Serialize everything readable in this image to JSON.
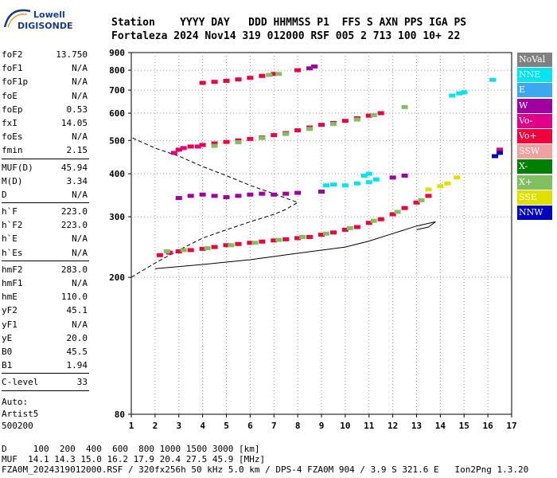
{
  "logo": {
    "line1": "Lowell",
    "line2": "DIGISONDE"
  },
  "header": {
    "line1": "Station    YYYY DAY   DDD HHMMSS P1  FFS S AXN PPS IGA PS",
    "line2": "Fortaleza 2024 Nov14 319 012000 RSF 005 2 713 100 10+ 22"
  },
  "params": [
    {
      "k": "foF2",
      "v": "13.750"
    },
    {
      "k": "foF1",
      "v": "N/A"
    },
    {
      "k": "foF1p",
      "v": "N/A"
    },
    {
      "k": "foE",
      "v": "N/A"
    },
    {
      "k": "foEp",
      "v": "0.53"
    },
    {
      "k": "fxI",
      "v": "14.05"
    },
    {
      "k": "foEs",
      "v": "N/A"
    },
    {
      "k": "fmin",
      "v": "2.15"
    },
    {
      "sep": true
    },
    {
      "k": "MUF(D)",
      "v": "45.94"
    },
    {
      "k": "M(D)",
      "v": "3.34"
    },
    {
      "k": "D",
      "v": "N/A"
    },
    {
      "sep": true
    },
    {
      "k": "h`F",
      "v": "223.0"
    },
    {
      "k": "h`F2",
      "v": "223.0"
    },
    {
      "k": "h`E",
      "v": "N/A"
    },
    {
      "k": "h`Es",
      "v": "N/A"
    },
    {
      "sep": true
    },
    {
      "k": "hmF2",
      "v": "283.0"
    },
    {
      "k": "hmF1",
      "v": "N/A"
    },
    {
      "k": "hmE",
      "v": "110.0"
    },
    {
      "k": "yF2",
      "v": "45.1"
    },
    {
      "k": "yF1",
      "v": "N/A"
    },
    {
      "k": "yE",
      "v": "20.0"
    },
    {
      "k": "B0",
      "v": "45.5"
    },
    {
      "k": "B1",
      "v": "1.94"
    },
    {
      "sep": true
    },
    {
      "k": "C-level",
      "v": "33"
    },
    {
      "sep": true
    }
  ],
  "auto": [
    "Auto:",
    "Artist5",
    "500200"
  ],
  "legend": [
    {
      "label": "NoVal",
      "color": "#808080"
    },
    {
      "label": "NNE",
      "color": "#00e5f0"
    },
    {
      "label": "E",
      "color": "#3ba8f0"
    },
    {
      "label": "W",
      "color": "#a000a0"
    },
    {
      "label": "Vo-",
      "color": "#e0008a"
    },
    {
      "label": "Vo+",
      "color": "#f0003c"
    },
    {
      "label": "SSW",
      "color": "#f0a0a0"
    },
    {
      "label": "X-",
      "color": "#008000"
    },
    {
      "label": "X+",
      "color": "#80c060"
    },
    {
      "label": "SSE",
      "color": "#e0e000"
    },
    {
      "label": "NNW",
      "color": "#0000c0"
    }
  ],
  "footer": {
    "line1": "D     100  200  400  600  800 1000 1500 3000 [km]",
    "line2": "MUF  14.1 14.3 15.0 16.2 17.9 20.4 27.5 45.9 [MHz]",
    "line3": "FZA0M_2024319012000.RSF / 320fx256h 50 kHz 5.0 km / DPS-4 FZA0M 904 / 3.9 S 321.6 E   Ion2Png 1.3.20"
  },
  "chart_data": {
    "type": "scatter",
    "xlim": [
      1,
      17
    ],
    "ylim": [
      80,
      900
    ],
    "y_scale": "log",
    "xticks": [
      1,
      2,
      3,
      4,
      5,
      6,
      7,
      8,
      9,
      10,
      11,
      12,
      13,
      14,
      15,
      16,
      17
    ],
    "yticks": [
      80,
      200,
      300,
      400,
      500,
      600,
      700,
      800,
      900
    ],
    "series": [
      {
        "legend": "Vo+",
        "color": "#f0003c",
        "points": [
          [
            2.2,
            232
          ],
          [
            2.6,
            236
          ],
          [
            3,
            238
          ],
          [
            3.5,
            240
          ],
          [
            4,
            242
          ],
          [
            4.5,
            245
          ],
          [
            5,
            248
          ],
          [
            5.5,
            250
          ],
          [
            6,
            252
          ],
          [
            6.5,
            254
          ],
          [
            7,
            256
          ],
          [
            7.5,
            258
          ],
          [
            8,
            260
          ],
          [
            8.5,
            262
          ],
          [
            9,
            266
          ],
          [
            9.5,
            270
          ],
          [
            10,
            275
          ],
          [
            10.5,
            280
          ],
          [
            11,
            288
          ],
          [
            11.5,
            295
          ],
          [
            12,
            305
          ],
          [
            12.5,
            318
          ],
          [
            13,
            330
          ],
          [
            13.5,
            345
          ],
          [
            3,
            470
          ],
          [
            3.5,
            480
          ],
          [
            4,
            485
          ],
          [
            4.5,
            490
          ],
          [
            5,
            495
          ],
          [
            5.5,
            500
          ],
          [
            6,
            505
          ],
          [
            6.5,
            510
          ],
          [
            7,
            518
          ],
          [
            7.5,
            525
          ],
          [
            8,
            535
          ],
          [
            8.5,
            545
          ],
          [
            9,
            555
          ],
          [
            9.5,
            562
          ],
          [
            10,
            570
          ],
          [
            10.5,
            580
          ],
          [
            11,
            590
          ],
          [
            11.5,
            600
          ],
          [
            4,
            735
          ],
          [
            4.5,
            740
          ],
          [
            5,
            745
          ],
          [
            5.5,
            752
          ],
          [
            6,
            760
          ],
          [
            6.5,
            770
          ],
          [
            7,
            780
          ],
          [
            8,
            800
          ]
        ]
      },
      {
        "legend": "X+",
        "color": "#80c060",
        "points": [
          [
            2.5,
            238
          ],
          [
            3.2,
            240
          ],
          [
            4.2,
            243
          ],
          [
            5.2,
            248
          ],
          [
            6.2,
            252
          ],
          [
            7.2,
            257
          ],
          [
            8.2,
            262
          ],
          [
            9.2,
            268
          ],
          [
            10.2,
            278
          ],
          [
            11.2,
            292
          ],
          [
            12.2,
            310
          ],
          [
            13.2,
            335
          ],
          [
            4.5,
            482
          ],
          [
            5.5,
            494
          ],
          [
            6.5,
            508
          ],
          [
            7.5,
            522
          ],
          [
            8.5,
            540
          ],
          [
            9.5,
            558
          ],
          [
            10.5,
            575
          ],
          [
            11.2,
            592
          ],
          [
            6.8,
            775
          ],
          [
            7.2,
            780
          ],
          [
            12.5,
            625
          ]
        ]
      },
      {
        "legend": "W",
        "color": "#a000a0",
        "points": [
          [
            3,
            340
          ],
          [
            3.5,
            345
          ],
          [
            4,
            348
          ],
          [
            4.5,
            345
          ],
          [
            5,
            342
          ],
          [
            5.5,
            345
          ],
          [
            6,
            348
          ],
          [
            6.5,
            350
          ],
          [
            7,
            348
          ],
          [
            7.5,
            350
          ],
          [
            8,
            352
          ],
          [
            9,
            355
          ],
          [
            12,
            390
          ],
          [
            12.5,
            395
          ],
          [
            8.5,
            810
          ],
          [
            8.7,
            820
          ]
        ]
      },
      {
        "legend": "NNE",
        "color": "#00e5f0",
        "points": [
          [
            9.2,
            370
          ],
          [
            9.5,
            372
          ],
          [
            10,
            370
          ],
          [
            10.5,
            375
          ],
          [
            11,
            378
          ],
          [
            11.3,
            385
          ],
          [
            10.8,
            395
          ],
          [
            11,
            400
          ],
          [
            14.5,
            675
          ],
          [
            14.8,
            685
          ],
          [
            15,
            690
          ],
          [
            16.2,
            750
          ]
        ]
      },
      {
        "legend": "SSE",
        "color": "#e0e000",
        "points": [
          [
            13.5,
            360
          ],
          [
            14,
            368
          ],
          [
            14.3,
            375
          ],
          [
            14.7,
            390
          ]
        ]
      },
      {
        "legend": "Vo-",
        "color": "#e0008a",
        "points": [
          [
            2.8,
            460
          ],
          [
            3.2,
            475
          ],
          [
            3.8,
            480
          ],
          [
            16.5,
            470
          ]
        ]
      },
      {
        "legend": "NNW",
        "color": "#0000c0",
        "points": [
          [
            16.3,
            450
          ],
          [
            16.5,
            460
          ]
        ]
      }
    ],
    "lines": [
      {
        "name": "dashed-profile",
        "style": "dashed",
        "points": [
          [
            1,
            200
          ],
          [
            2,
            220
          ],
          [
            3,
            240
          ],
          [
            4,
            260
          ],
          [
            5,
            275
          ],
          [
            6,
            290
          ],
          [
            7,
            305
          ],
          [
            7.5,
            315
          ],
          [
            8,
            330
          ],
          [
            7,
            350
          ],
          [
            6,
            370
          ],
          [
            5,
            395
          ],
          [
            4,
            420
          ],
          [
            3,
            450
          ],
          [
            2,
            475
          ],
          [
            1,
            510
          ]
        ]
      },
      {
        "name": "solid-trace",
        "style": "solid",
        "points": [
          [
            2,
            212
          ],
          [
            4,
            218
          ],
          [
            6,
            225
          ],
          [
            8,
            235
          ],
          [
            10,
            245
          ],
          [
            11,
            255
          ],
          [
            12,
            268
          ],
          [
            13,
            282
          ],
          [
            13.8,
            290
          ],
          [
            13.5,
            280
          ],
          [
            13,
            275
          ]
        ]
      }
    ]
  }
}
